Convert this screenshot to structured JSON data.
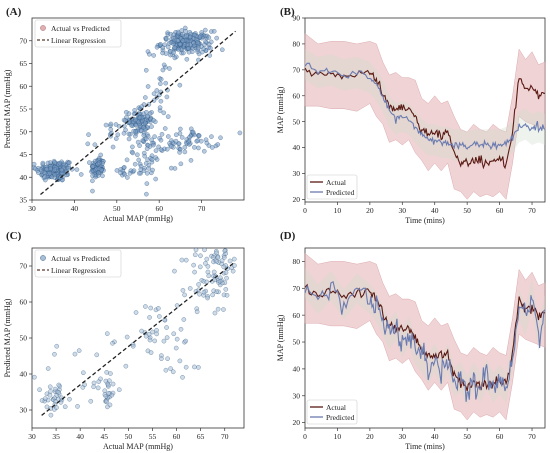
{
  "colors": {
    "scatter_fill": "#7b9cc4",
    "scatter_edge": "#1f4e79",
    "band_fill": "#e3aeb3",
    "band_fill_2": "#cfdccc",
    "actual_line": "#5a1a14",
    "predicted_line": "#6a7bb0",
    "regression_line": "#222222",
    "axis": "#333333"
  },
  "chart_data": [
    {
      "panel": "(A)",
      "type": "scatter",
      "xlabel": "Actual MAP (mmHg)",
      "ylabel": "Predicted MAP (mmHg)",
      "xlim": [
        30,
        80
      ],
      "ylim": [
        35,
        75
      ],
      "xticks": [
        30,
        40,
        50,
        60,
        70
      ],
      "yticks": [
        35,
        40,
        45,
        50,
        55,
        60,
        65,
        70
      ],
      "grid": false,
      "legend": {
        "position": "top-left",
        "entries": [
          "Actual vs Predicted",
          "Linear Regression"
        ]
      },
      "regression": {
        "x": [
          32,
          78
        ],
        "y": [
          36.2,
          72.1
        ]
      },
      "clusters": [
        {
          "x": 35.5,
          "y": 41.5,
          "sx": 2.2,
          "sy": 1.2,
          "n": 150
        },
        {
          "x": 45.5,
          "y": 42.0,
          "sx": 0.8,
          "sy": 1.2,
          "n": 80
        },
        {
          "x": 55.5,
          "y": 52.5,
          "sx": 1.5,
          "sy": 1.5,
          "n": 95
        },
        {
          "x": 66.5,
          "y": 69.5,
          "sx": 3.0,
          "sy": 1.3,
          "n": 190
        },
        {
          "x": 64.0,
          "y": 48.0,
          "sx": 5.0,
          "sy": 1.3,
          "n": 80
        },
        {
          "x": 58.5,
          "y": 44.0,
          "sx": 3.0,
          "sy": 2.0,
          "n": 35
        },
        {
          "x": 60.5,
          "y": 61.0,
          "sx": 1.5,
          "sy": 4.0,
          "n": 30
        },
        {
          "x": 49.0,
          "y": 49.0,
          "sx": 3.0,
          "sy": 2.0,
          "n": 25
        },
        {
          "x": 53.0,
          "y": 41.0,
          "sx": 3.0,
          "sy": 0.8,
          "n": 20
        }
      ]
    },
    {
      "panel": "(B)",
      "type": "line",
      "xlabel": "Time (mins)",
      "ylabel": "MAP (mmHg)",
      "xlim": [
        0,
        74
      ],
      "ylim": [
        19,
        90
      ],
      "xticks": [
        0,
        10,
        20,
        30,
        40,
        50,
        60,
        70
      ],
      "yticks": [
        20,
        30,
        40,
        50,
        60,
        70,
        80,
        90
      ],
      "grid": false,
      "legend": {
        "position": "bottom-left"
      },
      "series": [
        {
          "name": "Actual",
          "x": [
            0,
            4,
            8,
            12,
            16,
            20,
            22,
            24,
            26,
            28,
            30,
            32,
            34,
            36,
            38,
            40,
            42,
            44,
            46,
            48,
            50,
            52,
            54,
            56,
            58,
            60,
            62,
            64,
            66,
            68,
            70,
            72,
            74
          ],
          "y": [
            70,
            68,
            69,
            67,
            68,
            69,
            66,
            61,
            56,
            55,
            55,
            55,
            52,
            47,
            45,
            46,
            45,
            46,
            38,
            35,
            34,
            35,
            35,
            34,
            35,
            35,
            34,
            46,
            66,
            62,
            63,
            60,
            61
          ]
        },
        {
          "name": "Predicted",
          "x": [
            0,
            4,
            8,
            12,
            16,
            20,
            22,
            24,
            26,
            28,
            30,
            32,
            34,
            36,
            38,
            40,
            42,
            44,
            46,
            48,
            50,
            52,
            54,
            56,
            58,
            60,
            62,
            64,
            66,
            68,
            70,
            72,
            74
          ],
          "y": [
            72,
            69,
            70,
            68,
            69,
            67,
            64,
            60,
            54,
            51,
            52,
            51,
            48,
            45,
            43,
            43,
            42,
            42,
            41,
            41,
            40,
            41,
            41,
            41,
            41,
            41,
            42,
            44,
            48,
            49,
            47,
            48,
            47
          ]
        }
      ],
      "band": {
        "x": [
          0,
          4,
          8,
          12,
          16,
          20,
          22,
          24,
          26,
          28,
          30,
          32,
          34,
          36,
          38,
          40,
          42,
          44,
          46,
          48,
          50,
          52,
          54,
          56,
          58,
          60,
          62,
          64,
          66,
          68,
          70,
          72,
          74
        ],
        "halfwidth": 12
      }
    },
    {
      "panel": "(C)",
      "type": "scatter",
      "xlabel": "Actual MAP (mmHg)",
      "ylabel": "Predicted MAP (mmHg)",
      "xlim": [
        30,
        74
      ],
      "ylim": [
        25,
        75
      ],
      "xticks": [
        30,
        35,
        40,
        45,
        50,
        55,
        60,
        65,
        70
      ],
      "yticks": [
        30,
        40,
        50,
        60,
        70
      ],
      "grid": false,
      "legend": {
        "position": "top-left",
        "entries": [
          "Actual vs Predicted",
          "Linear Regression"
        ]
      },
      "regression": {
        "x": [
          32,
          72
        ],
        "y": [
          28.5,
          71.0
        ]
      },
      "clusters": [
        {
          "x": 35.0,
          "y": 33.0,
          "sx": 1.5,
          "sy": 2.0,
          "n": 30
        },
        {
          "x": 45.5,
          "y": 36.0,
          "sx": 1.0,
          "sy": 3.0,
          "n": 25
        },
        {
          "x": 55.0,
          "y": 50.0,
          "sx": 3.0,
          "sy": 5.0,
          "n": 35
        },
        {
          "x": 67.0,
          "y": 66.0,
          "sx": 2.5,
          "sy": 5.0,
          "n": 60
        },
        {
          "x": 62.0,
          "y": 52.0,
          "sx": 4.0,
          "sy": 8.0,
          "n": 20
        },
        {
          "x": 40.0,
          "y": 40.0,
          "sx": 5.0,
          "sy": 5.0,
          "n": 20
        },
        {
          "x": 70.0,
          "y": 71.0,
          "sx": 1.5,
          "sy": 2.0,
          "n": 20
        }
      ]
    },
    {
      "panel": "(D)",
      "type": "line",
      "xlabel": "Time (mins)",
      "ylabel": "MAP (mmHg)",
      "xlim": [
        0,
        74
      ],
      "ylim": [
        18,
        85
      ],
      "xticks": [
        0,
        10,
        20,
        30,
        40,
        50,
        60,
        70
      ],
      "yticks": [
        20,
        30,
        40,
        50,
        60,
        70,
        80
      ],
      "grid": false,
      "legend": {
        "position": "bottom-left"
      },
      "series": [
        {
          "name": "Actual",
          "x": [
            0,
            4,
            8,
            12,
            16,
            20,
            22,
            24,
            26,
            28,
            30,
            32,
            34,
            36,
            38,
            40,
            42,
            44,
            46,
            48,
            50,
            52,
            54,
            56,
            58,
            60,
            62,
            64,
            66,
            68,
            70,
            72,
            74
          ],
          "y": [
            70,
            68,
            69,
            67,
            68,
            69,
            66,
            61,
            56,
            55,
            55,
            55,
            52,
            47,
            45,
            46,
            45,
            46,
            38,
            35,
            34,
            35,
            35,
            34,
            35,
            35,
            34,
            46,
            66,
            62,
            63,
            60,
            61
          ]
        },
        {
          "name": "Predicted",
          "x": [
            0,
            4,
            8,
            12,
            16,
            20,
            22,
            24,
            26,
            28,
            30,
            32,
            34,
            36,
            38,
            40,
            42,
            44,
            46,
            48,
            50,
            52,
            54,
            56,
            58,
            60,
            62,
            64,
            66,
            68,
            70,
            72,
            74
          ],
          "y": [
            72,
            66,
            71,
            64,
            70,
            66,
            63,
            58,
            53,
            56,
            50,
            54,
            47,
            44,
            40,
            44,
            39,
            44,
            35,
            37,
            32,
            37,
            33,
            38,
            33,
            36,
            33,
            45,
            64,
            58,
            68,
            52,
            62
          ]
        }
      ],
      "band": {
        "x": [
          0,
          4,
          8,
          12,
          16,
          20,
          22,
          24,
          26,
          28,
          30,
          32,
          34,
          36,
          38,
          40,
          42,
          44,
          46,
          48,
          50,
          52,
          54,
          56,
          58,
          60,
          62,
          64,
          66,
          68,
          70,
          72,
          74
        ],
        "halfwidth": 11
      }
    }
  ]
}
